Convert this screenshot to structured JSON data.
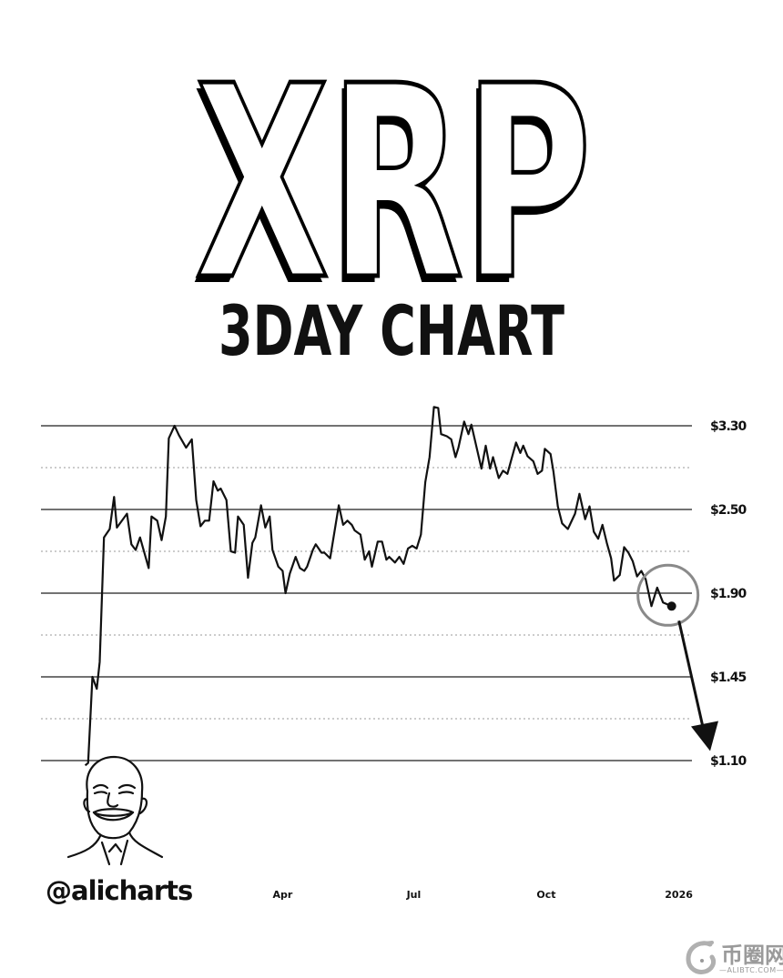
{
  "header": {
    "title": "XRP",
    "subtitle": "3DAY CHART"
  },
  "author": {
    "handle": "@alicharts"
  },
  "watermark": {
    "name": "币圈网",
    "domain": "—ALIBTC.COM—"
  },
  "colors": {
    "line": "#111111",
    "grid": "#444444",
    "grid_minor": "#9a9a9a",
    "highlight_circle": "#8a8a8a",
    "background": "#ffffff"
  },
  "chart_data": {
    "type": "line",
    "title": "XRP 3DAY CHART",
    "xlabel": "",
    "ylabel": "",
    "y_axis_position": "right",
    "y_scale": "non-uniform (labelled levels equally spaced)",
    "y_ticks": [
      {
        "value": 3.3,
        "label": "$3.30"
      },
      {
        "value": 2.5,
        "label": "$2.50"
      },
      {
        "value": 1.9,
        "label": "$1.90"
      },
      {
        "value": 1.45,
        "label": "$1.45"
      },
      {
        "value": 1.1,
        "label": "$1.10"
      }
    ],
    "x_ticks": [
      {
        "date": "2025-04-01",
        "label": "Apr"
      },
      {
        "date": "2025-07-01",
        "label": "Jul"
      },
      {
        "date": "2025-10-01",
        "label": "Oct"
      },
      {
        "date": "2026-01-01",
        "label": "2026"
      }
    ],
    "grid": "horizontal solid at labelled levels, dotted midlines",
    "legend": "none",
    "series": [
      {
        "points": [
          [
            "2024-11-15",
            1.08
          ],
          [
            "2024-11-17",
            1.09
          ],
          [
            "2024-11-20",
            1.45
          ],
          [
            "2024-11-23",
            1.4
          ],
          [
            "2024-11-25",
            1.53
          ],
          [
            "2024-11-28",
            2.3
          ],
          [
            "2024-12-02",
            2.36
          ],
          [
            "2024-12-05",
            2.62
          ],
          [
            "2024-12-07",
            2.37
          ],
          [
            "2024-12-14",
            2.47
          ],
          [
            "2024-12-17",
            2.25
          ],
          [
            "2024-12-20",
            2.21
          ],
          [
            "2024-12-23",
            2.3
          ],
          [
            "2024-12-29",
            2.08
          ],
          [
            "2024-12-31",
            2.45
          ],
          [
            "2025-01-04",
            2.42
          ],
          [
            "2025-01-07",
            2.28
          ],
          [
            "2025-01-10",
            2.45
          ],
          [
            "2025-01-12",
            3.18
          ],
          [
            "2025-01-16",
            3.3
          ],
          [
            "2025-01-19",
            3.21
          ],
          [
            "2025-01-24",
            3.09
          ],
          [
            "2025-01-28",
            3.17
          ],
          [
            "2025-01-31",
            2.59
          ],
          [
            "2025-02-03",
            2.38
          ],
          [
            "2025-02-06",
            2.42
          ],
          [
            "2025-02-09",
            2.42
          ],
          [
            "2025-02-12",
            2.77
          ],
          [
            "2025-02-15",
            2.68
          ],
          [
            "2025-02-17",
            2.7
          ],
          [
            "2025-02-21",
            2.59
          ],
          [
            "2025-02-24",
            2.2
          ],
          [
            "2025-02-27",
            2.19
          ],
          [
            "2025-03-01",
            2.45
          ],
          [
            "2025-03-05",
            2.39
          ],
          [
            "2025-03-08",
            2.01
          ],
          [
            "2025-03-11",
            2.26
          ],
          [
            "2025-03-13",
            2.3
          ],
          [
            "2025-03-17",
            2.54
          ],
          [
            "2025-03-20",
            2.37
          ],
          [
            "2025-03-23",
            2.45
          ],
          [
            "2025-03-25",
            2.21
          ],
          [
            "2025-03-29",
            2.09
          ],
          [
            "2025-04-01",
            2.06
          ],
          [
            "2025-04-03",
            1.9
          ],
          [
            "2025-04-06",
            2.04
          ],
          [
            "2025-04-10",
            2.16
          ],
          [
            "2025-04-13",
            2.08
          ],
          [
            "2025-04-16",
            2.06
          ],
          [
            "2025-04-18",
            2.09
          ],
          [
            "2025-04-22",
            2.21
          ],
          [
            "2025-04-24",
            2.25
          ],
          [
            "2025-04-28",
            2.19
          ],
          [
            "2025-04-30",
            2.19
          ],
          [
            "2025-05-04",
            2.15
          ],
          [
            "2025-05-10",
            2.54
          ],
          [
            "2025-05-13",
            2.39
          ],
          [
            "2025-05-16",
            2.42
          ],
          [
            "2025-05-19",
            2.39
          ],
          [
            "2025-05-21",
            2.35
          ],
          [
            "2025-05-25",
            2.32
          ],
          [
            "2025-05-28",
            2.14
          ],
          [
            "2025-05-31",
            2.2
          ],
          [
            "2025-06-02",
            2.09
          ],
          [
            "2025-06-06",
            2.27
          ],
          [
            "2025-06-09",
            2.27
          ],
          [
            "2025-06-12",
            2.14
          ],
          [
            "2025-06-14",
            2.16
          ],
          [
            "2025-06-18",
            2.12
          ],
          [
            "2025-06-21",
            2.16
          ],
          [
            "2025-06-24",
            2.11
          ],
          [
            "2025-06-27",
            2.22
          ],
          [
            "2025-06-30",
            2.24
          ],
          [
            "2025-07-03",
            2.22
          ],
          [
            "2025-07-06",
            2.32
          ],
          [
            "2025-07-09",
            2.76
          ],
          [
            "2025-07-12",
            3.0
          ],
          [
            "2025-07-15",
            3.48
          ],
          [
            "2025-07-18",
            3.47
          ],
          [
            "2025-07-20",
            3.22
          ],
          [
            "2025-07-24",
            3.2
          ],
          [
            "2025-07-27",
            3.17
          ],
          [
            "2025-07-30",
            3.0
          ],
          [
            "2025-08-01",
            3.09
          ],
          [
            "2025-08-05",
            3.34
          ],
          [
            "2025-08-08",
            3.22
          ],
          [
            "2025-08-10",
            3.31
          ],
          [
            "2025-08-13",
            3.13
          ],
          [
            "2025-08-17",
            2.89
          ],
          [
            "2025-08-20",
            3.11
          ],
          [
            "2025-08-23",
            2.89
          ],
          [
            "2025-08-25",
            3.0
          ],
          [
            "2025-08-29",
            2.8
          ],
          [
            "2025-09-01",
            2.87
          ],
          [
            "2025-09-04",
            2.84
          ],
          [
            "2025-09-10",
            3.14
          ],
          [
            "2025-09-13",
            3.04
          ],
          [
            "2025-09-15",
            3.11
          ],
          [
            "2025-09-18",
            3.01
          ],
          [
            "2025-09-22",
            2.96
          ],
          [
            "2025-09-25",
            2.84
          ],
          [
            "2025-09-28",
            2.87
          ],
          [
            "2025-09-30",
            3.08
          ],
          [
            "2025-10-04",
            3.03
          ],
          [
            "2025-10-06",
            2.86
          ],
          [
            "2025-10-09",
            2.53
          ],
          [
            "2025-10-12",
            2.4
          ],
          [
            "2025-10-16",
            2.36
          ],
          [
            "2025-10-21",
            2.47
          ],
          [
            "2025-10-24",
            2.65
          ],
          [
            "2025-10-28",
            2.43
          ],
          [
            "2025-10-31",
            2.53
          ],
          [
            "2025-11-03",
            2.34
          ],
          [
            "2025-11-06",
            2.29
          ],
          [
            "2025-11-09",
            2.39
          ],
          [
            "2025-11-12",
            2.26
          ],
          [
            "2025-11-15",
            2.15
          ],
          [
            "2025-11-17",
            1.99
          ],
          [
            "2025-11-21",
            2.03
          ],
          [
            "2025-11-24",
            2.23
          ],
          [
            "2025-11-27",
            2.19
          ],
          [
            "2025-11-30",
            2.13
          ],
          [
            "2025-12-03",
            2.02
          ],
          [
            "2025-12-06",
            2.06
          ],
          [
            "2025-12-09",
            2.0
          ],
          [
            "2025-12-13",
            1.83
          ],
          [
            "2025-12-17",
            1.94
          ],
          [
            "2025-12-21",
            1.85
          ],
          [
            "2025-12-27",
            1.83
          ]
        ]
      }
    ],
    "annotations": [
      {
        "type": "circle-highlight",
        "around": "latest price"
      },
      {
        "type": "projection-arrow",
        "direction": "down",
        "toward": "$1.10"
      }
    ]
  }
}
